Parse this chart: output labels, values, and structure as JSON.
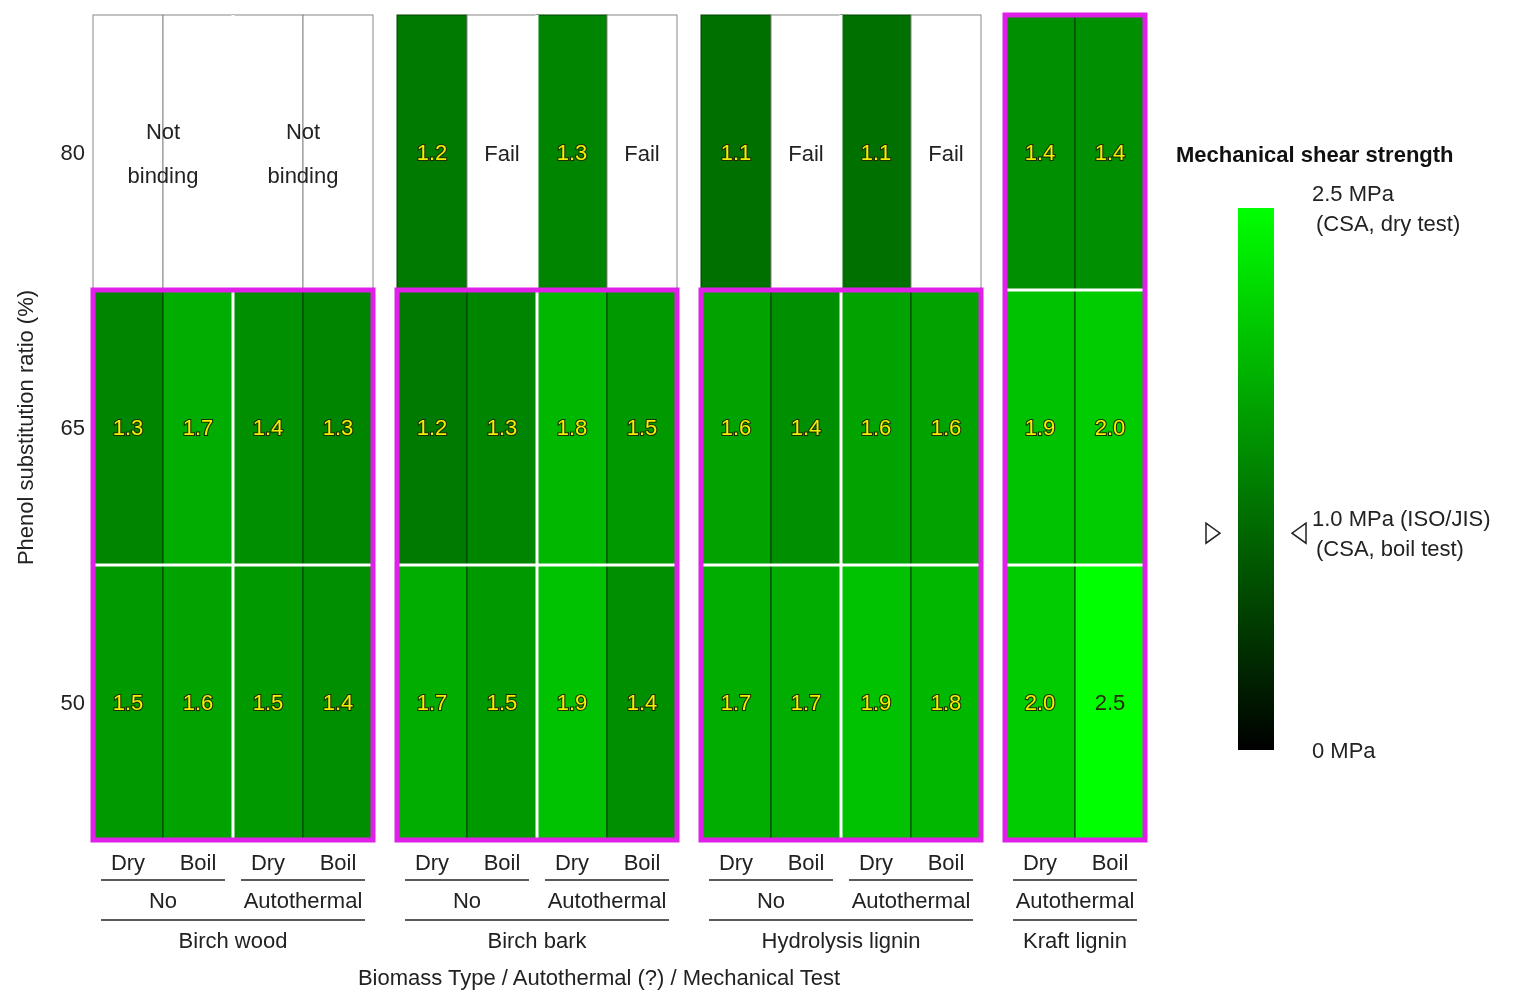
{
  "chart_data": [
    {
      "type": "heatmap",
      "xlabel": "Birch wood",
      "ylabel": "Phenol substitution ratio (%)",
      "categories": [
        "Dry",
        "Boil",
        "Dry",
        "Boil"
      ],
      "y_categories": [
        "80",
        "65",
        "50"
      ],
      "cells": [
        [
          null,
          null,
          null,
          null
        ],
        [
          1.3,
          1.7,
          1.4,
          1.3
        ],
        [
          1.5,
          1.6,
          1.5,
          1.4
        ]
      ],
      "cell_labels": [
        [
          "Not binding",
          null,
          "Not binding",
          null
        ],
        [
          "1.3",
          "1.7",
          "1.4",
          "1.3"
        ],
        [
          "1.5",
          "1.6",
          "1.5",
          "1.4"
        ]
      ],
      "data_labels": true,
      "annotations": [
        "No",
        "Autothermal",
        "Biomass Type / Autothermal (?) / Mechanical Test"
      ]
    },
    {
      "type": "heatmap",
      "xlabel": "Birch bark",
      "categories": [
        "Dry",
        "Boil",
        "Dry",
        "Boil"
      ],
      "y_categories": [
        "80",
        "65",
        "50"
      ],
      "tick_labels": "x",
      "cells": [
        [
          1.2,
          null,
          1.3,
          null
        ],
        [
          1.2,
          1.3,
          1.8,
          1.5
        ],
        [
          1.7,
          1.5,
          1.9,
          1.4
        ]
      ],
      "cell_labels": [
        [
          "1.2",
          "Fail",
          "1.3",
          "Fail"
        ],
        [
          "1.2",
          "1.3",
          "1.8",
          "1.5"
        ],
        [
          "1.7",
          "1.5",
          "1.9",
          "1.4"
        ]
      ],
      "data_labels": true,
      "annotations": [
        "No",
        "Autothermal"
      ]
    },
    {
      "type": "heatmap",
      "xlabel": "Hydrolysis lignin",
      "categories": [
        "Dry",
        "Boil",
        "Dry",
        "Boil"
      ],
      "y_categories": [
        "80",
        "65",
        "50"
      ],
      "tick_labels": "x",
      "cells": [
        [
          1.1,
          null,
          1.1,
          null
        ],
        [
          1.6,
          1.4,
          1.6,
          1.6
        ],
        [
          1.7,
          1.7,
          1.9,
          1.8
        ]
      ],
      "cell_labels": [
        [
          "1.1",
          "Fail",
          "1.1",
          "Fail"
        ],
        [
          "1.6",
          "1.4",
          "1.6",
          "1.6"
        ],
        [
          "1.7",
          "1.7",
          "1.9",
          "1.8"
        ]
      ],
      "data_labels": true,
      "annotations": [
        "No",
        "Autothermal"
      ]
    },
    {
      "type": "heatmap",
      "xlabel": "Kraft lignin",
      "categories": [
        "Dry",
        "Boil"
      ],
      "y_categories": [
        "80",
        "65",
        "50"
      ],
      "tick_labels": "x",
      "cells": [
        [
          1.4,
          1.4
        ],
        [
          1.9,
          2.0
        ],
        [
          2.0,
          2.5
        ]
      ],
      "cell_labels": [
        [
          "1.4",
          "1.4"
        ],
        [
          "1.9",
          "2.0"
        ],
        [
          "2.0",
          "2.5"
        ]
      ],
      "data_labels": true,
      "annotations": [
        "Autothermal"
      ],
      "clabel": "Mechanical shear strength",
      "clim": [
        0,
        2.5
      ],
      "cticks": [
        {
          "value": 2.5,
          "label": "2.5 MPa\n(CSA, dry test)"
        },
        {
          "value": 1.0,
          "label": "1.0 MPa (ISO/JIS)\n(CSA, boil test)"
        },
        {
          "value": 0,
          "label": "0 MPa"
        }
      ]
    }
  ]
}
